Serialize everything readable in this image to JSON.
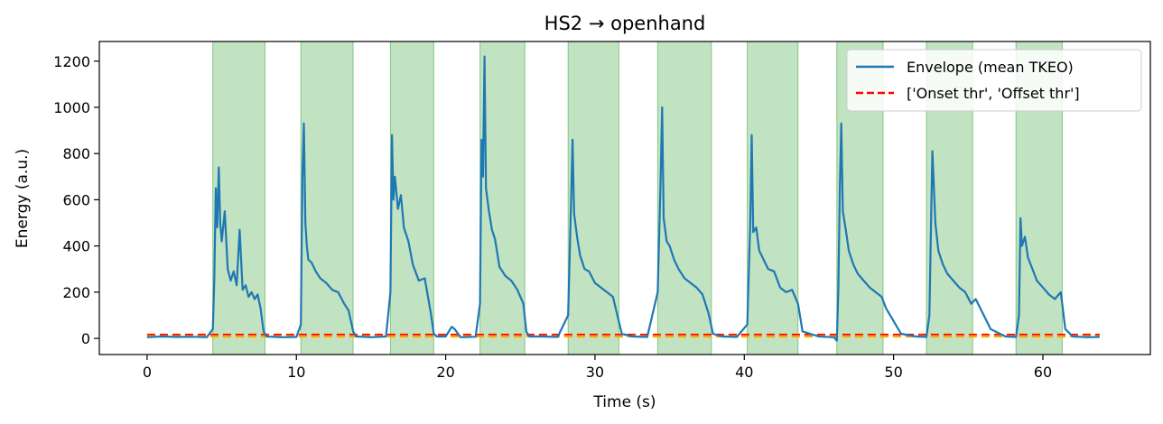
{
  "chart_data": {
    "type": "line",
    "title": "HS2 → openhand",
    "xlabel": "Time (s)",
    "ylabel": "Energy (a.u.)",
    "xlim": [
      -3.2,
      67.2
    ],
    "ylim": [
      -70,
      1285
    ],
    "xticks": [
      0,
      10,
      20,
      30,
      40,
      50,
      60
    ],
    "yticks": [
      0,
      200,
      400,
      600,
      800,
      1000,
      1200
    ],
    "grid": false,
    "legend_position": "top-right",
    "legend": [
      {
        "label": "Envelope (mean TKEO)",
        "color": "#1f77b4",
        "style": "solid"
      },
      {
        "label": "['Onset thr', 'Offset thr']",
        "color": "#ff0000",
        "style": "dashed"
      }
    ],
    "series": [
      {
        "color": "#1f77b4",
        "x": [
          0,
          1,
          2,
          3,
          4,
          4.4,
          4.5,
          4.6,
          4.7,
          4.8,
          4.9,
          5.0,
          5.2,
          5.4,
          5.6,
          5.8,
          6.0,
          6.2,
          6.4,
          6.6,
          6.8,
          7.0,
          7.2,
          7.4,
          7.6,
          7.8,
          8.0,
          9,
          10,
          10.3,
          10.4,
          10.5,
          10.6,
          10.7,
          10.8,
          11.0,
          11.3,
          11.6,
          12.0,
          12.4,
          12.8,
          13.2,
          13.5,
          13.8,
          14.0,
          15,
          16,
          16.3,
          16.4,
          16.5,
          16.6,
          16.8,
          17.0,
          17.2,
          17.5,
          17.8,
          18.2,
          18.6,
          19.0,
          19.2,
          19.4,
          20,
          20.4,
          20.6,
          21,
          22,
          22.3,
          22.4,
          22.5,
          22.6,
          22.7,
          22.9,
          23.1,
          23.3,
          23.6,
          24.0,
          24.4,
          24.8,
          25.2,
          25.4,
          25.6,
          26.5,
          27.5,
          28.2,
          28.4,
          28.5,
          28.6,
          28.8,
          29.0,
          29.3,
          29.6,
          30.0,
          30.4,
          30.8,
          31.2,
          31.5,
          31.8,
          32.5,
          33.5,
          34.2,
          34.4,
          34.5,
          34.6,
          34.8,
          35.0,
          35.3,
          35.6,
          36.0,
          36.4,
          36.8,
          37.2,
          37.6,
          37.9,
          38.5,
          39.5,
          40.2,
          40.4,
          40.5,
          40.6,
          40.8,
          41.0,
          41.3,
          41.6,
          42.0,
          42.4,
          42.8,
          43.2,
          43.6,
          43.9,
          45,
          46,
          46.2,
          46.3,
          46.4,
          46.5,
          46.6,
          46.8,
          47.0,
          47.3,
          47.6,
          48.0,
          48.4,
          48.8,
          49.2,
          49.5,
          50.5,
          51.5,
          52.2,
          52.4,
          52.5,
          52.6,
          52.8,
          53.0,
          53.3,
          53.6,
          54.0,
          54.4,
          54.8,
          55.2,
          55.5,
          56.5,
          57.5,
          58.2,
          58.4,
          58.5,
          58.6,
          58.8,
          59.0,
          59.3,
          59.6,
          60.0,
          60.4,
          60.8,
          61.2,
          61.5,
          62.0,
          63.0,
          63.8
        ],
        "y": [
          5,
          8,
          6,
          7,
          5,
          40,
          250,
          650,
          480,
          740,
          500,
          420,
          550,
          300,
          250,
          290,
          230,
          470,
          210,
          230,
          180,
          200,
          170,
          190,
          130,
          30,
          8,
          5,
          6,
          60,
          700,
          930,
          500,
          400,
          340,
          330,
          290,
          260,
          240,
          210,
          200,
          150,
          120,
          30,
          8,
          5,
          8,
          200,
          880,
          600,
          700,
          560,
          620,
          480,
          420,
          320,
          250,
          260,
          110,
          20,
          8,
          8,
          50,
          40,
          5,
          7,
          150,
          860,
          700,
          1220,
          650,
          550,
          470,
          430,
          310,
          270,
          250,
          210,
          150,
          30,
          8,
          8,
          6,
          100,
          600,
          860,
          540,
          440,
          360,
          300,
          290,
          240,
          220,
          200,
          180,
          100,
          20,
          8,
          6,
          200,
          700,
          1000,
          520,
          420,
          400,
          340,
          300,
          260,
          240,
          220,
          190,
          110,
          20,
          8,
          6,
          60,
          500,
          880,
          460,
          480,
          380,
          340,
          300,
          290,
          220,
          200,
          210,
          150,
          30,
          8,
          5,
          -10,
          200,
          650,
          930,
          550,
          470,
          380,
          320,
          280,
          250,
          220,
          200,
          180,
          130,
          20,
          8,
          6,
          100,
          450,
          810,
          500,
          380,
          320,
          280,
          250,
          220,
          200,
          150,
          170,
          40,
          8,
          6,
          100,
          520,
          400,
          440,
          350,
          300,
          250,
          220,
          190,
          170,
          200,
          40,
          8,
          5,
          6
        ]
      },
      {
        "color": "#ff0000",
        "style": "dashed",
        "x": [
          0,
          63.8
        ],
        "y": [
          15,
          15
        ]
      },
      {
        "color": "#ffa500",
        "style": "dashed",
        "x": [
          0,
          63.8
        ],
        "y": [
          9,
          9
        ]
      }
    ],
    "active_regions": [
      [
        4.4,
        7.9
      ],
      [
        10.3,
        13.8
      ],
      [
        16.3,
        19.2
      ],
      [
        22.3,
        25.3
      ],
      [
        28.2,
        31.6
      ],
      [
        34.2,
        37.8
      ],
      [
        40.2,
        43.6
      ],
      [
        46.2,
        49.3
      ],
      [
        52.2,
        55.3
      ],
      [
        58.2,
        61.3
      ]
    ],
    "region_color": "#2ca02c"
  }
}
